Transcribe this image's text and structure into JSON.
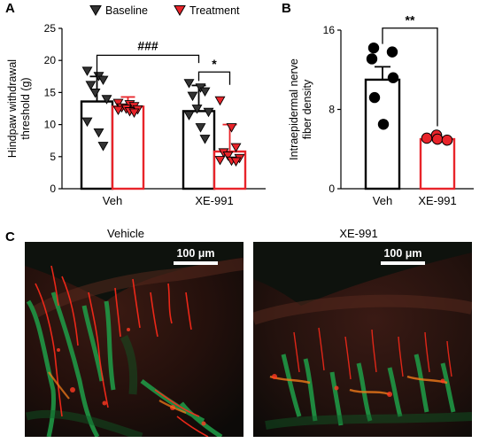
{
  "panel_letters": {
    "a": "A",
    "b": "B",
    "c": "C"
  },
  "chart_data": [
    {
      "type": "bar",
      "panel": "A",
      "ylabel": "Hindpaw withdrawal threshold (g)",
      "ylabel_lines": [
        "Hindpaw withdrawal",
        "threshold (g)"
      ],
      "ylim": [
        0,
        25
      ],
      "yticks": [
        0,
        5,
        10,
        15,
        20,
        25
      ],
      "categories": [
        "Veh",
        "XE-991"
      ],
      "legend": [
        "Baseline",
        "Treatment"
      ],
      "series": [
        {
          "name": "Baseline",
          "color": "#000000",
          "marker_fill": "#333333",
          "values": [
            13.6,
            12.1
          ],
          "errors": [
            3.9,
            4.0
          ],
          "points": [
            [
              18.4,
              17.6,
              17.0,
              16.2,
              15.0,
              14.0,
              10.5,
              8.8,
              6.7
            ],
            [
              16.5,
              15.8,
              15.2,
              14.5,
              12.5,
              12.0,
              11.5,
              9.6,
              7.8
            ]
          ]
        },
        {
          "name": "Treatment",
          "color": "#e8242a",
          "marker_fill": "#e8242a",
          "values": [
            12.8,
            5.8
          ],
          "errors": [
            1.5,
            4.2
          ],
          "points": [
            [
              13.4,
              13.2,
              12.9,
              12.7,
              12.5,
              12.4,
              12.3,
              12.1,
              11.9
            ],
            [
              13.8,
              9.6,
              6.5,
              5.7,
              5.2,
              4.8,
              4.5,
              4.4,
              4.3
            ]
          ]
        }
      ],
      "annotations": [
        {
          "text": "###",
          "from": "Veh Baseline",
          "to": "XE-991 Baseline"
        },
        {
          "text": "*",
          "from": "XE-991 Baseline",
          "to": "XE-991 Treatment"
        }
      ]
    },
    {
      "type": "bar",
      "panel": "B",
      "ylabel": "Intraepidermal nerve fiber density",
      "ylabel_lines": [
        "Intraepidermal nerve",
        "fiber density"
      ],
      "ylim": [
        0,
        16
      ],
      "yticks": [
        0,
        8,
        16
      ],
      "categories": [
        "Veh",
        "XE-991"
      ],
      "series": [
        {
          "colors": [
            "#000000",
            "#e8242a"
          ],
          "values": [
            11.0,
            5.0
          ],
          "errors": [
            1.3,
            0.2
          ],
          "points": [
            [
              14.2,
              13.8,
              13.1,
              11.2,
              9.2,
              6.5
            ],
            [
              5.1,
              5.4,
              5.0,
              4.9
            ]
          ]
        }
      ],
      "annotations": [
        {
          "text": "**",
          "from": "Veh",
          "to": "XE-991"
        }
      ]
    }
  ],
  "images": {
    "left_title": "Vehicle",
    "right_title": "XE-991",
    "scale_label": "100 μm"
  },
  "colors": {
    "red": "#e8242a",
    "black": "#000000",
    "green": "#1f9e48"
  }
}
